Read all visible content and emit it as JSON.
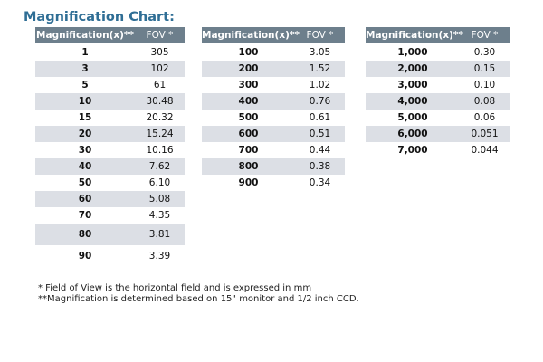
{
  "title": "Magnification Chart:",
  "header": {
    "magnification": "Magnification(x)**",
    "fov": "FOV *"
  },
  "tables": [
    {
      "rows": [
        {
          "mag": "1",
          "fov": "305"
        },
        {
          "mag": "3",
          "fov": "102"
        },
        {
          "mag": "5",
          "fov": "61"
        },
        {
          "mag": "10",
          "fov": "30.48"
        },
        {
          "mag": "15",
          "fov": "20.32"
        },
        {
          "mag": "20",
          "fov": "15.24"
        },
        {
          "mag": "30",
          "fov": "10.16"
        },
        {
          "mag": "40",
          "fov": "7.62"
        },
        {
          "mag": "50",
          "fov": "6.10"
        },
        {
          "mag": "60",
          "fov": "5.08"
        },
        {
          "mag": "70",
          "fov": "4.35"
        },
        {
          "mag": "80",
          "fov": "3.81"
        },
        {
          "mag": "90",
          "fov": "3.39"
        }
      ]
    },
    {
      "rows": [
        {
          "mag": "100",
          "fov": "3.05"
        },
        {
          "mag": "200",
          "fov": "1.52"
        },
        {
          "mag": "300",
          "fov": "1.02"
        },
        {
          "mag": "400",
          "fov": "0.76"
        },
        {
          "mag": "500",
          "fov": "0.61"
        },
        {
          "mag": "600",
          "fov": "0.51"
        },
        {
          "mag": "700",
          "fov": "0.44"
        },
        {
          "mag": "800",
          "fov": "0.38"
        },
        {
          "mag": "900",
          "fov": "0.34"
        }
      ]
    },
    {
      "rows": [
        {
          "mag": "1,000",
          "fov": "0.30"
        },
        {
          "mag": "2,000",
          "fov": "0.15"
        },
        {
          "mag": "3,000",
          "fov": "0.10"
        },
        {
          "mag": "4,000",
          "fov": "0.08"
        },
        {
          "mag": "5,000",
          "fov": "0.06"
        },
        {
          "mag": "6,000",
          "fov": "0.051"
        },
        {
          "mag": "7,000",
          "fov": "0.044"
        }
      ]
    }
  ],
  "notes": {
    "line1": "* Field of View is the horizontal field and is expressed in mm",
    "line2": "**Magnification is determined based on 15\" monitor and 1/2 inch CCD."
  },
  "colors": {
    "title": "#2f6e95",
    "header_bg": "#6d7f8c",
    "row_alt_bg": "#dcdfe5"
  }
}
